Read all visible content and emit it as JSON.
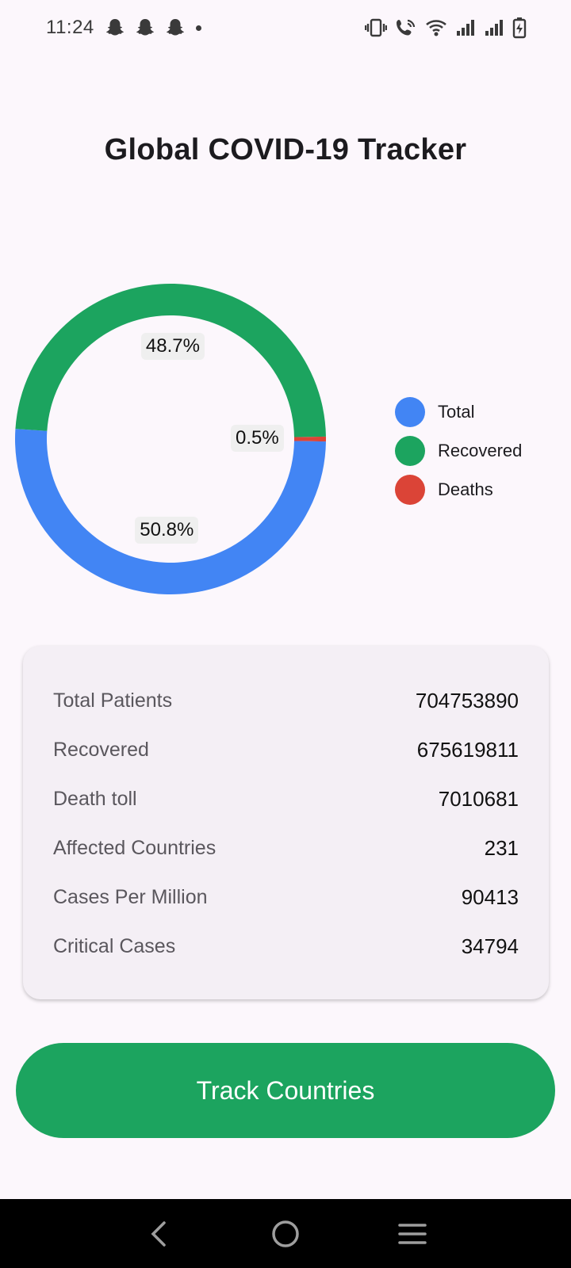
{
  "status_bar": {
    "time": "11:24",
    "notification_icons": [
      "snapchat-icon",
      "snapchat-icon",
      "snapchat-icon",
      "dot-icon"
    ],
    "system_icons": [
      "vibrate-icon",
      "wifi-call-icon",
      "wifi-icon",
      "signal-icon",
      "signal-icon",
      "battery-charging-icon"
    ]
  },
  "title": "Global COVID-19 Tracker",
  "chart_data": {
    "type": "pie",
    "style": "donut",
    "categories": [
      "Total",
      "Recovered",
      "Deaths"
    ],
    "values": [
      50.8,
      48.7,
      0.5
    ],
    "labels": [
      "50.8%",
      "48.7%",
      "0.5%"
    ],
    "colors": [
      "#4285f4",
      "#1ca45f",
      "#db4437"
    ],
    "legend_position": "right"
  },
  "stats": [
    {
      "label": "Total Patients",
      "value": "704753890"
    },
    {
      "label": "Recovered",
      "value": "675619811"
    },
    {
      "label": "Death toll",
      "value": "7010681"
    },
    {
      "label": "Affected Countries",
      "value": "231"
    },
    {
      "label": "Cases Per Million",
      "value": "90413"
    },
    {
      "label": "Critical Cases",
      "value": "34794"
    }
  ],
  "track_button_label": "Track Countries",
  "nav": [
    "back-icon",
    "home-icon",
    "recents-icon"
  ],
  "colors": {
    "background": "#fcf7fc",
    "accent_green": "#1ca45f",
    "blue": "#4285f4",
    "red": "#db4437",
    "card": "#f4eff5"
  }
}
